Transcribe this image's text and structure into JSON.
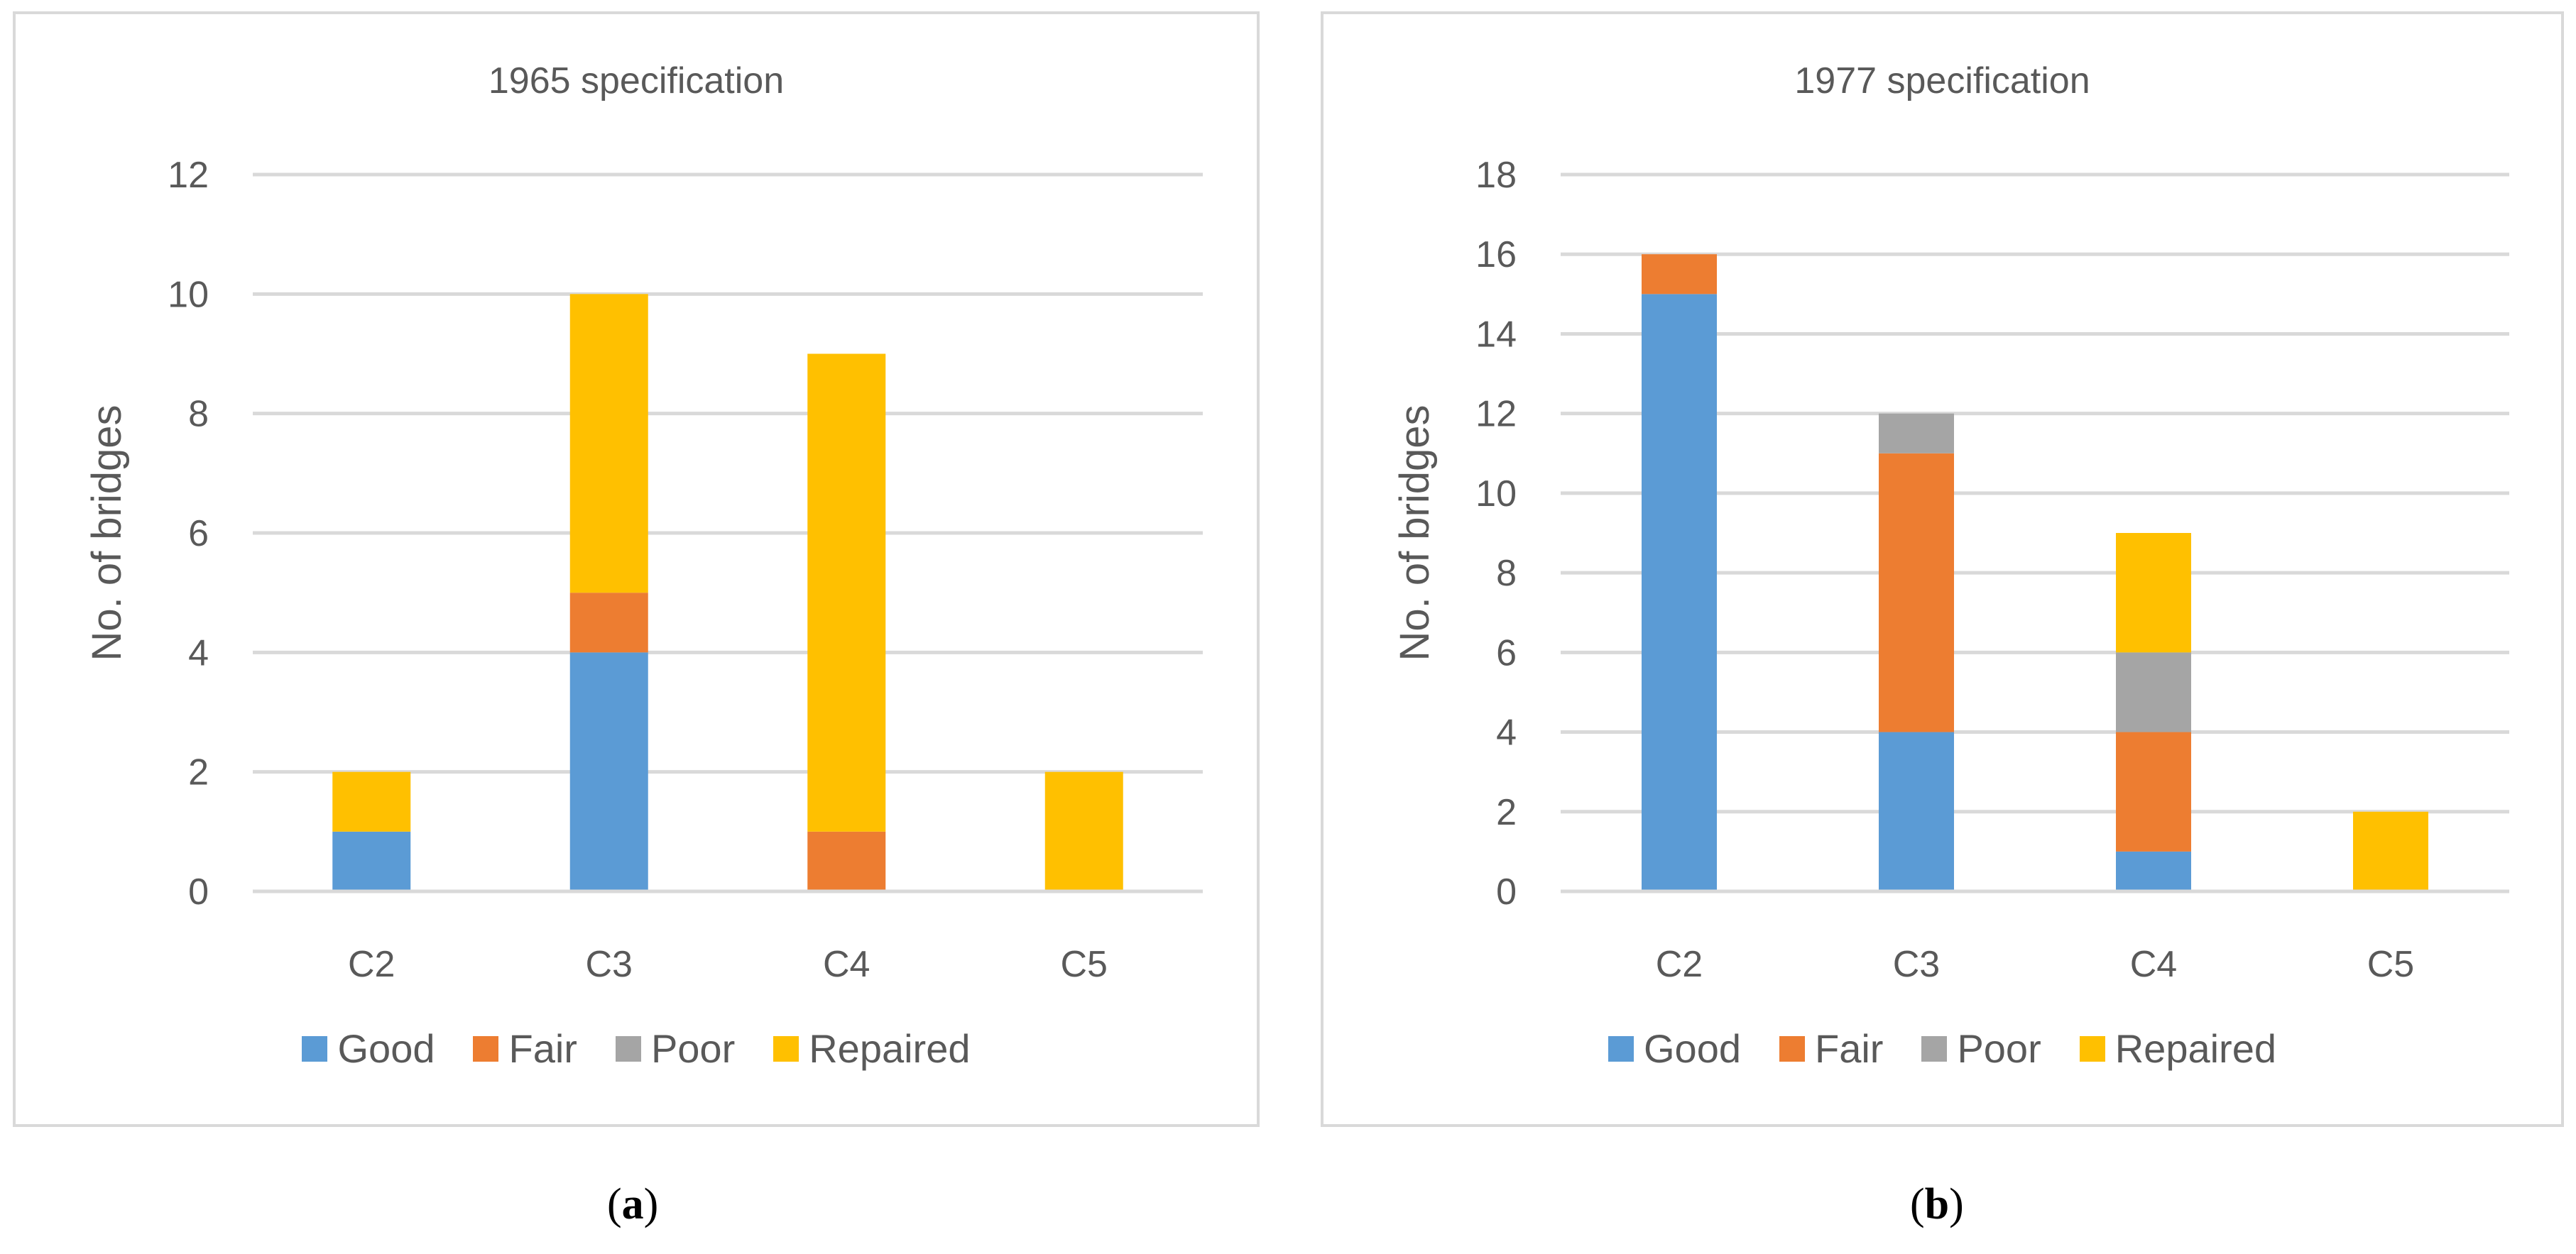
{
  "chart_data": [
    {
      "type": "stacked-bar",
      "title": "1965 specification",
      "xlabel": "",
      "ylabel": "No. of bridges",
      "categories": [
        "C2",
        "C3",
        "C4",
        "C5"
      ],
      "ylim": [
        0,
        12
      ],
      "yticks": [
        0,
        2,
        4,
        6,
        8,
        10,
        12
      ],
      "grid": true,
      "legend": "bottom",
      "series": [
        {
          "name": "Good",
          "color": "#5b9bd5",
          "values": [
            1,
            4,
            0,
            0
          ]
        },
        {
          "name": "Fair",
          "color": "#ed7d31",
          "values": [
            0,
            1,
            1,
            0
          ]
        },
        {
          "name": "Poor",
          "color": "#a5a5a5",
          "values": [
            0,
            0,
            0,
            0
          ]
        },
        {
          "name": "Repaired",
          "color": "#ffc000",
          "values": [
            1,
            5,
            8,
            2
          ]
        }
      ]
    },
    {
      "type": "stacked-bar",
      "title": "1977 specification",
      "xlabel": "",
      "ylabel": "No. of bridges",
      "categories": [
        "C2",
        "C3",
        "C4",
        "C5"
      ],
      "ylim": [
        0,
        18
      ],
      "yticks": [
        0,
        2,
        4,
        6,
        8,
        10,
        12,
        14,
        16,
        18
      ],
      "grid": true,
      "legend": "bottom",
      "series": [
        {
          "name": "Good",
          "color": "#5b9bd5",
          "values": [
            15,
            4,
            1,
            0
          ]
        },
        {
          "name": "Fair",
          "color": "#ed7d31",
          "values": [
            1,
            7,
            3,
            0
          ]
        },
        {
          "name": "Poor",
          "color": "#a5a5a5",
          "values": [
            0,
            1,
            2,
            0
          ]
        },
        {
          "name": "Repaired",
          "color": "#ffc000",
          "values": [
            0,
            0,
            3,
            2
          ]
        }
      ]
    }
  ],
  "captions": {
    "a": {
      "open": "(",
      "letter": "a",
      "close": ")"
    },
    "b": {
      "open": "(",
      "letter": "b",
      "close": ")"
    }
  }
}
